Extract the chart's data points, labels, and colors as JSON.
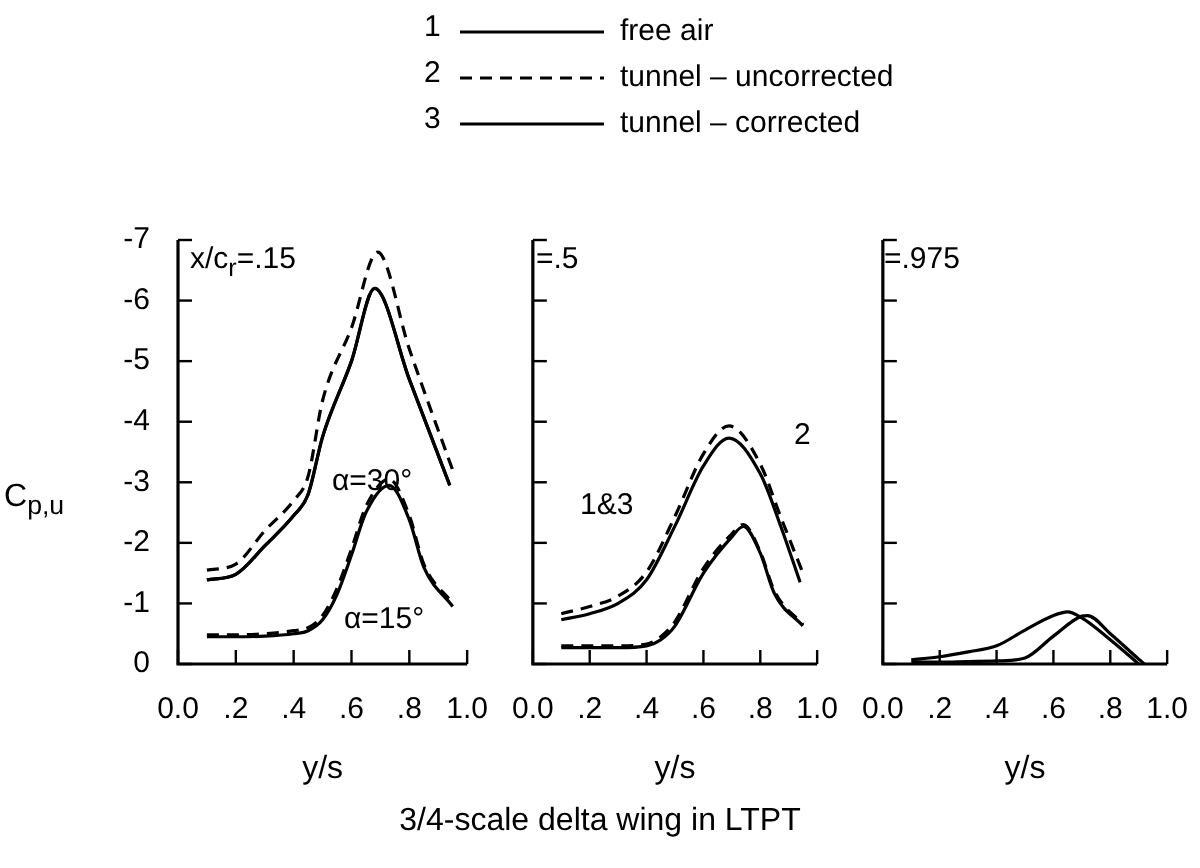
{
  "chart_data": [
    {
      "type": "line",
      "xlabel": "y/s",
      "ylabel": "C$_{p,u}$",
      "xlim": [
        0,
        1
      ],
      "ylim": [
        0,
        -7
      ],
      "xticks": [
        {
          "value": 0,
          "label": "0.0"
        },
        {
          "value": 0.2,
          "label": ".2"
        },
        {
          "value": 0.4,
          "label": ".4"
        },
        {
          "value": 0.6,
          "label": ".6"
        },
        {
          "value": 0.8,
          "label": ".8"
        },
        {
          "value": 1,
          "label": "1.0"
        }
      ],
      "yticks": [
        0,
        -1,
        -2,
        -3,
        -4,
        -5,
        -6,
        -7
      ],
      "legend": "top",
      "marker": "none",
      "annotations": [
        "x/c$_{r}$=.15",
        "α=30°",
        "α=15°",
        "1",
        "2",
        "3"
      ],
      "series": [
        {
          "name": "free air",
          "color": "#000000",
          "line_style": "solid",
          "x": [
            0.1,
            0.2,
            0.3,
            0.4,
            0.45,
            0.5,
            0.6,
            0.68,
            0.8,
            0.94
          ],
          "values": [
            -1.39,
            -1.48,
            -1.95,
            -2.45,
            -2.8,
            -3.75,
            -5.0,
            -6.2,
            -4.7,
            -2.95
          ]
        },
        {
          "name": "tunnel – uncorrected",
          "color": "#000000",
          "line_style": "dashed",
          "x": [
            0.1,
            0.2,
            0.3,
            0.4,
            0.45,
            0.5,
            0.6,
            0.69,
            0.8,
            0.95
          ],
          "values": [
            -1.55,
            -1.65,
            -2.2,
            -2.7,
            -3.1,
            -4.35,
            -5.55,
            -6.8,
            -5.2,
            -3.2
          ]
        },
        {
          "name": "tunnel – corrected",
          "color": "#000000",
          "line_style": "solid",
          "x": [
            0.1,
            0.2,
            0.3,
            0.4,
            0.45,
            0.5,
            0.6,
            0.68,
            0.8,
            0.94
          ],
          "values": [
            -1.39,
            -1.48,
            -1.95,
            -2.45,
            -2.8,
            -3.75,
            -5.0,
            -6.2,
            -4.7,
            -2.95
          ]
        },
        {
          "color": "#000000",
          "line_style": "solid",
          "x": [
            0.1,
            0.2,
            0.3,
            0.4,
            0.45,
            0.5,
            0.55,
            0.6,
            0.65,
            0.73,
            0.8,
            0.85,
            0.95
          ],
          "values": [
            -0.45,
            -0.45,
            -0.46,
            -0.5,
            -0.55,
            -0.73,
            -1.15,
            -1.8,
            -2.5,
            -2.95,
            -2.38,
            -1.6,
            -0.95
          ]
        },
        {
          "color": "#000000",
          "line_style": "dashed",
          "x": [
            0.1,
            0.2,
            0.3,
            0.4,
            0.45,
            0.5,
            0.55,
            0.6,
            0.65,
            0.73,
            0.8,
            0.85,
            0.95
          ],
          "values": [
            -0.48,
            -0.48,
            -0.5,
            -0.55,
            -0.6,
            -0.8,
            -1.25,
            -1.9,
            -2.6,
            -3.05,
            -2.45,
            -1.65,
            -1.0
          ]
        }
      ]
    },
    {
      "type": "line",
      "xlabel": "y/s",
      "title": "3/4-scale delta wing in LTPT",
      "xlim": [
        0,
        1
      ],
      "ylim": [
        0,
        -7
      ],
      "xticks": [
        {
          "value": 0,
          "label": "0.0"
        },
        {
          "value": 0.2,
          "label": ".2"
        },
        {
          "value": 0.4,
          "label": ".4"
        },
        {
          "value": 0.6,
          "label": ".6"
        },
        {
          "value": 0.8,
          "label": ".8"
        },
        {
          "value": 1,
          "label": "1.0"
        }
      ],
      "yticks": [
        0,
        -1,
        -2,
        -3,
        -4,
        -5,
        -6,
        -7
      ],
      "tick_labels": "x",
      "marker": "none",
      "annotations": [
        "=.5",
        "1&3",
        "2"
      ],
      "series": [
        {
          "color": "#000000",
          "line_style": "solid",
          "x": [
            0.1,
            0.2,
            0.3,
            0.4,
            0.5,
            0.6,
            0.69,
            0.8,
            0.87,
            0.94
          ],
          "values": [
            -0.73,
            -0.83,
            -1.0,
            -1.39,
            -2.28,
            -3.27,
            -3.73,
            -3.14,
            -2.3,
            -1.35
          ]
        },
        {
          "color": "#000000",
          "line_style": "dashed",
          "x": [
            0.1,
            0.2,
            0.3,
            0.4,
            0.5,
            0.6,
            0.69,
            0.8,
            0.87,
            0.95
          ],
          "values": [
            -0.83,
            -0.95,
            -1.12,
            -1.52,
            -2.44,
            -3.47,
            -3.93,
            -3.3,
            -2.45,
            -1.5
          ]
        },
        {
          "color": "#000000",
          "line_style": "solid",
          "x": [
            0.1,
            0.2,
            0.3,
            0.4,
            0.45,
            0.5,
            0.6,
            0.7,
            0.74,
            0.8,
            0.85,
            0.95
          ],
          "values": [
            -0.27,
            -0.27,
            -0.27,
            -0.3,
            -0.4,
            -0.63,
            -1.5,
            -2.1,
            -2.27,
            -1.83,
            -1.16,
            -0.63
          ]
        },
        {
          "color": "#000000",
          "line_style": "dashed",
          "x": [
            0.1,
            0.2,
            0.3,
            0.4,
            0.45,
            0.5,
            0.6,
            0.7,
            0.74,
            0.8,
            0.85,
            0.95
          ],
          "values": [
            -0.3,
            -0.3,
            -0.3,
            -0.33,
            -0.45,
            -0.7,
            -1.58,
            -2.15,
            -2.3,
            -1.85,
            -1.2,
            -0.65
          ]
        }
      ]
    },
    {
      "type": "line",
      "xlabel": "y/s",
      "xlim": [
        0,
        1
      ],
      "ylim": [
        0,
        -7
      ],
      "xticks": [
        {
          "value": 0,
          "label": "0.0"
        },
        {
          "value": 0.2,
          "label": ".2"
        },
        {
          "value": 0.4,
          "label": ".4"
        },
        {
          "value": 0.6,
          "label": ".6"
        },
        {
          "value": 0.8,
          "label": ".8"
        },
        {
          "value": 1,
          "label": "1.0"
        }
      ],
      "yticks": [
        0,
        -1,
        -2,
        -3,
        -4,
        -5,
        -6,
        -7
      ],
      "tick_labels": "x",
      "marker": "none",
      "annotations": [
        "=.975"
      ],
      "series": [
        {
          "color": "#000000",
          "line_style": "solid",
          "x": [
            0.1,
            0.2,
            0.3,
            0.4,
            0.5,
            0.6,
            0.65,
            0.7,
            0.8,
            0.9
          ],
          "values": [
            -0.07,
            -0.12,
            -0.2,
            -0.3,
            -0.56,
            -0.8,
            -0.86,
            -0.76,
            -0.4,
            0
          ]
        },
        {
          "color": "#000000",
          "line_style": "solid",
          "x": [
            0.1,
            0.2,
            0.3,
            0.4,
            0.5,
            0.6,
            0.7,
            0.72,
            0.8,
            0.9,
            0.92
          ],
          "values": [
            -0.03,
            -0.03,
            -0.04,
            -0.05,
            -0.1,
            -0.46,
            -0.79,
            -0.8,
            -0.5,
            -0.08,
            0
          ]
        }
      ]
    }
  ]
}
